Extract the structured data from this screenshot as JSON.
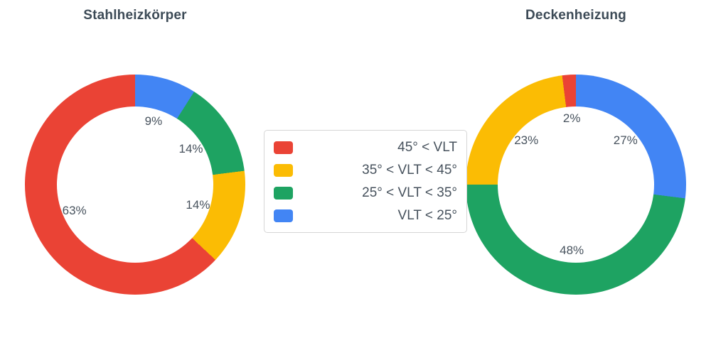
{
  "legend": {
    "items": [
      {
        "label": "45° < VLT",
        "color": "#ea4335"
      },
      {
        "label": "35° < VLT < 45°",
        "color": "#fbbc04"
      },
      {
        "label": "25° < VLT < 35°",
        "color": "#1ea362"
      },
      {
        "label": "VLT < 25°",
        "color": "#4285f4"
      }
    ]
  },
  "chart_data": [
    {
      "type": "pie",
      "title": "Stahlheizkörper",
      "hole_ratio": 0.71,
      "direction": "counterclockwise",
      "start_angle": "top",
      "labels": [
        "45° < VLT",
        "35° < VLT < 45°",
        "25° < VLT < 35°",
        "VLT < 25°"
      ],
      "values": [
        63,
        14,
        14,
        9
      ],
      "value_labels": [
        "63%",
        "14%",
        "14%",
        "9%"
      ],
      "colors": [
        "#ea4335",
        "#fbbc04",
        "#1ea362",
        "#4285f4"
      ],
      "legend_position": "center-between-charts"
    },
    {
      "type": "pie",
      "title": "Deckenheizung",
      "hole_ratio": 0.71,
      "direction": "counterclockwise",
      "start_angle": "top",
      "labels": [
        "45° < VLT",
        "35° < VLT < 45°",
        "25° < VLT < 35°",
        "VLT < 25°"
      ],
      "values": [
        2,
        23,
        48,
        27
      ],
      "value_labels": [
        "2%",
        "23%",
        "48%",
        "27%"
      ],
      "colors": [
        "#ea4335",
        "#fbbc04",
        "#1ea362",
        "#4285f4"
      ],
      "legend_position": "center-between-charts"
    }
  ]
}
